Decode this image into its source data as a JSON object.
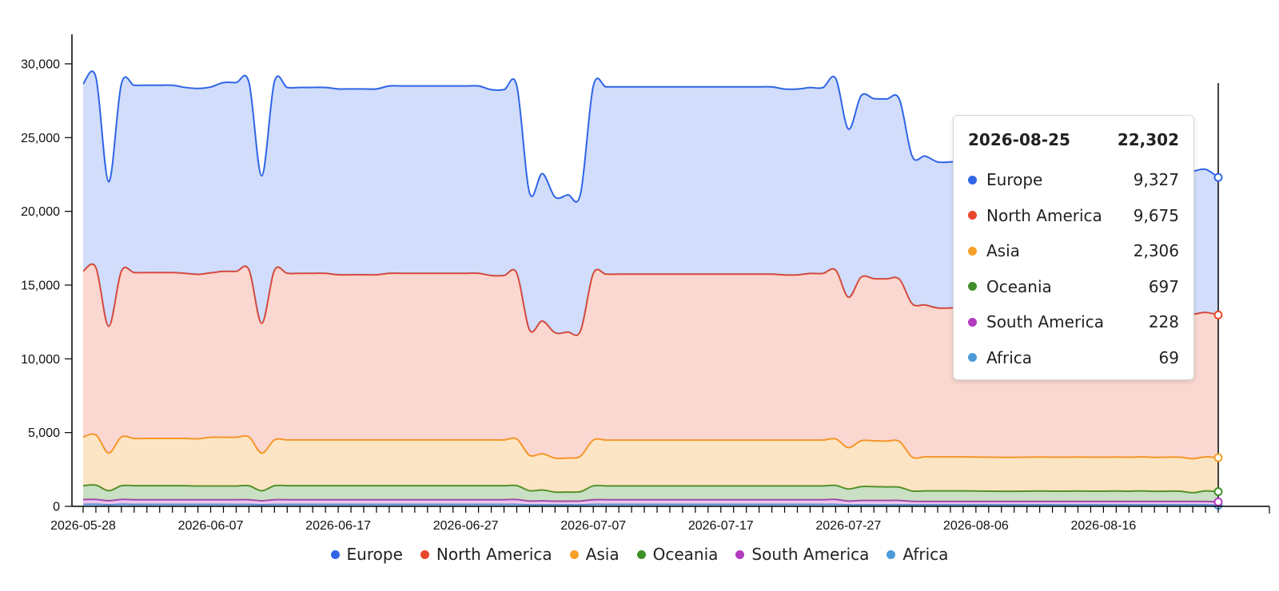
{
  "chart_data": {
    "type": "area",
    "stacked": true,
    "x_start": "2026-05-28",
    "x_end": "2026-08-25",
    "x_tick_labels": [
      "2026-05-28",
      "2026-06-07",
      "2026-06-17",
      "2026-06-27",
      "2026-07-07",
      "2026-07-17",
      "2026-07-27",
      "2026-08-06",
      "2026-08-16"
    ],
    "y_tick_labels": [
      "0",
      "5,000",
      "10,000",
      "15,000",
      "20,000",
      "25,000",
      "30,000"
    ],
    "ylim": [
      0,
      32000
    ],
    "title": "",
    "xlabel": "",
    "ylabel": "",
    "legend_position": "bottom",
    "grid": false,
    "series": [
      {
        "name": "Africa",
        "color": "#4a9ad9",
        "values": [
          130,
          140,
          110,
          140,
          130,
          130,
          130,
          130,
          130,
          130,
          130,
          130,
          130,
          130,
          110,
          130,
          130,
          130,
          130,
          130,
          130,
          130,
          130,
          130,
          130,
          130,
          130,
          130,
          130,
          130,
          130,
          130,
          130,
          130,
          130,
          100,
          100,
          100,
          100,
          100,
          130,
          130,
          130,
          130,
          130,
          130,
          130,
          130,
          130,
          130,
          130,
          130,
          130,
          130,
          130,
          130,
          130,
          130,
          130,
          130,
          100,
          100,
          100,
          100,
          100,
          100,
          100,
          100,
          100,
          100,
          100,
          100,
          100,
          100,
          100,
          100,
          100,
          100,
          100,
          100,
          100,
          100,
          100,
          100,
          100,
          100,
          100,
          100,
          100,
          69
        ]
      },
      {
        "name": "South America",
        "color": "#b23cbf",
        "values": [
          330,
          330,
          270,
          330,
          320,
          320,
          320,
          320,
          320,
          320,
          320,
          320,
          320,
          320,
          270,
          320,
          320,
          320,
          320,
          320,
          320,
          320,
          320,
          320,
          320,
          320,
          320,
          320,
          320,
          320,
          320,
          320,
          320,
          320,
          330,
          260,
          270,
          250,
          250,
          260,
          320,
          320,
          320,
          320,
          320,
          320,
          320,
          320,
          320,
          320,
          320,
          320,
          320,
          320,
          320,
          320,
          320,
          320,
          320,
          340,
          260,
          300,
          300,
          300,
          300,
          240,
          230,
          230,
          230,
          230,
          230,
          230,
          230,
          230,
          230,
          230,
          230,
          230,
          230,
          230,
          230,
          230,
          230,
          230,
          230,
          230,
          230,
          230,
          230,
          228
        ]
      },
      {
        "name": "Oceania",
        "color": "#3f8f2a",
        "values": [
          940,
          970,
          680,
          930,
          950,
          950,
          950,
          950,
          950,
          930,
          930,
          930,
          930,
          950,
          680,
          950,
          950,
          950,
          950,
          950,
          950,
          950,
          950,
          950,
          950,
          950,
          950,
          950,
          950,
          950,
          950,
          950,
          950,
          950,
          950,
          700,
          740,
          620,
          620,
          640,
          940,
          940,
          940,
          940,
          940,
          940,
          940,
          940,
          940,
          940,
          940,
          940,
          940,
          940,
          940,
          940,
          940,
          940,
          940,
          950,
          820,
          940,
          940,
          920,
          900,
          700,
          720,
          720,
          720,
          720,
          710,
          700,
          690,
          690,
          700,
          710,
          700,
          700,
          710,
          700,
          700,
          710,
          700,
          720,
          690,
          700,
          700,
          600,
          720,
          697
        ]
      },
      {
        "name": "Asia",
        "color": "#f6a02a",
        "values": [
          3300,
          3400,
          2550,
          3300,
          3200,
          3200,
          3200,
          3200,
          3200,
          3200,
          3300,
          3300,
          3300,
          3300,
          2550,
          3100,
          3100,
          3100,
          3100,
          3100,
          3100,
          3100,
          3100,
          3100,
          3100,
          3100,
          3100,
          3100,
          3100,
          3100,
          3100,
          3100,
          3100,
          3100,
          3150,
          2400,
          2450,
          2300,
          2300,
          2400,
          3100,
          3100,
          3100,
          3100,
          3100,
          3100,
          3100,
          3100,
          3100,
          3100,
          3100,
          3100,
          3100,
          3100,
          3100,
          3100,
          3100,
          3100,
          3100,
          3150,
          2800,
          3100,
          3100,
          3100,
          3100,
          2300,
          2300,
          2300,
          2300,
          2300,
          2300,
          2300,
          2300,
          2300,
          2300,
          2300,
          2300,
          2300,
          2300,
          2300,
          2300,
          2300,
          2300,
          2300,
          2300,
          2300,
          2300,
          2300,
          2300,
          2306
        ]
      },
      {
        "name": "North America",
        "color": "#e8472b",
        "values": [
          11250,
          11350,
          8600,
          11250,
          11250,
          11250,
          11250,
          11250,
          11200,
          11150,
          11150,
          11250,
          11250,
          11350,
          8800,
          11500,
          11300,
          11300,
          11300,
          11300,
          11200,
          11200,
          11200,
          11200,
          11300,
          11300,
          11300,
          11300,
          11300,
          11300,
          11300,
          11300,
          11150,
          11150,
          11250,
          8500,
          9000,
          8500,
          8550,
          8500,
          11300,
          11250,
          11250,
          11250,
          11250,
          11250,
          11250,
          11250,
          11250,
          11250,
          11250,
          11250,
          11250,
          11250,
          11250,
          11200,
          11200,
          11300,
          11300,
          11450,
          10200,
          11100,
          11000,
          11000,
          11000,
          10400,
          10300,
          10100,
          10100,
          10200,
          10000,
          9800,
          9800,
          9800,
          9800,
          9800,
          9800,
          9800,
          9800,
          9800,
          9800,
          9800,
          9800,
          9800,
          9800,
          9800,
          9800,
          9800,
          9800,
          9675
        ]
      },
      {
        "name": "Europe",
        "color": "#2f65e6",
        "values": [
          12700,
          12900,
          9800,
          12700,
          12700,
          12700,
          12700,
          12700,
          12600,
          12600,
          12600,
          12800,
          12800,
          12700,
          10000,
          12800,
          12600,
          12600,
          12600,
          12600,
          12600,
          12600,
          12600,
          12600,
          12700,
          12700,
          12700,
          12700,
          12700,
          12700,
          12700,
          12700,
          12600,
          12600,
          12700,
          9300,
          10000,
          9200,
          9300,
          9300,
          12700,
          12700,
          12700,
          12700,
          12700,
          12700,
          12700,
          12700,
          12700,
          12700,
          12700,
          12700,
          12700,
          12700,
          12700,
          12600,
          12600,
          12600,
          12600,
          13000,
          11400,
          12300,
          12200,
          12200,
          12200,
          10000,
          10100,
          9900,
          9900,
          9900,
          9900,
          9800,
          9750,
          9750,
          9750,
          9700,
          9700,
          9700,
          9700,
          9700,
          9700,
          9700,
          9700,
          9700,
          9700,
          9700,
          9700,
          9700,
          9700,
          9327
        ]
      }
    ]
  },
  "tooltip": {
    "date": "2026-08-25",
    "total": "22,302",
    "rows": [
      {
        "name": "Europe",
        "value": "9,327",
        "color": "#2f65e6"
      },
      {
        "name": "North America",
        "value": "9,675",
        "color": "#e8472b"
      },
      {
        "name": "Asia",
        "value": "2,306",
        "color": "#f6a02a"
      },
      {
        "name": "Oceania",
        "value": "697",
        "color": "#3f8f2a"
      },
      {
        "name": "South America",
        "value": "228",
        "color": "#b23cbf"
      },
      {
        "name": "Africa",
        "value": "69",
        "color": "#4a9ad9"
      }
    ]
  },
  "legend": [
    {
      "name": "Europe",
      "color": "#2f65e6"
    },
    {
      "name": "North America",
      "color": "#e8472b"
    },
    {
      "name": "Asia",
      "color": "#f6a02a"
    },
    {
      "name": "Oceania",
      "color": "#3f8f2a"
    },
    {
      "name": "South America",
      "color": "#b23cbf"
    },
    {
      "name": "Africa",
      "color": "#4a9ad9"
    }
  ]
}
